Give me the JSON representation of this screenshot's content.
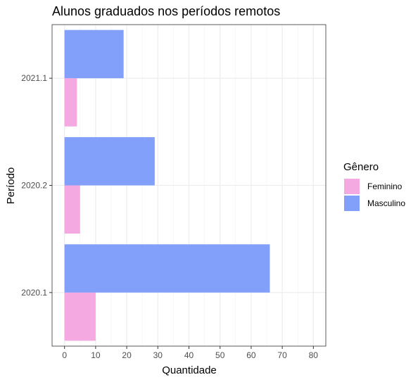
{
  "chart_data": {
    "type": "bar",
    "orientation": "horizontal",
    "title": "Alunos graduados nos períodos remotos",
    "xlabel": "Quantidade",
    "ylabel": "Período",
    "categories": [
      "2020.1",
      "2020.2",
      "2021.1"
    ],
    "series": [
      {
        "name": "Feminino",
        "values": [
          10,
          5,
          4
        ],
        "color": "#F4A9E0"
      },
      {
        "name": "Masculino",
        "values": [
          66,
          29,
          19
        ],
        "color": "#82A0FA"
      }
    ],
    "xlim": [
      -4,
      84
    ],
    "xticks": [
      0,
      10,
      20,
      30,
      40,
      50,
      60,
      70,
      80
    ],
    "grid": true,
    "legend": {
      "title": "Gênero",
      "position": "right"
    }
  }
}
